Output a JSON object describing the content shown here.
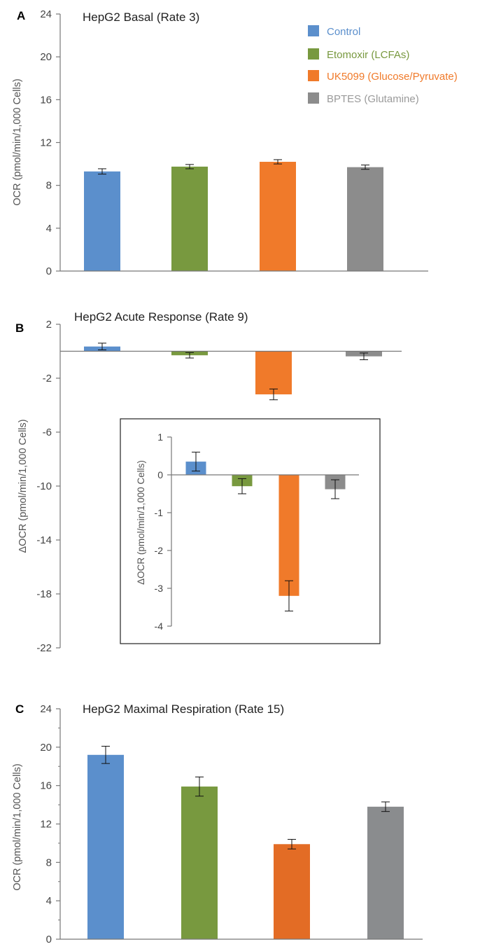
{
  "chart_data": [
    {
      "type": "bar",
      "panel_label": "A",
      "title": "HepG2 Basal (Rate 3)",
      "ylabel": "OCR (pmol/min/1,000 Cells)",
      "ylim": [
        0,
        24
      ],
      "yticks": [
        0,
        4,
        8,
        12,
        16,
        20,
        24
      ],
      "categories": [
        "Control",
        "Etomoxir (LCFAs)",
        "UK5099 (Glucose/Pyruvate)",
        "BPTES (Glutamine)"
      ],
      "values": [
        9.3,
        9.75,
        10.2,
        9.7
      ],
      "errors": [
        0.25,
        0.2,
        0.2,
        0.2
      ],
      "colors": [
        "#5b8fcc",
        "#78993f",
        "#f07a2a",
        "#8c8c8c"
      ],
      "legend": {
        "placement": "top-right",
        "entries": [
          {
            "label": "Control",
            "color": "#5b8fcc"
          },
          {
            "label": "Etomoxir (LCFAs)",
            "color": "#78993f"
          },
          {
            "label": "UK5099 (Glucose/Pyruvate)",
            "color": "#f07a2a"
          },
          {
            "label": "BPTES (Glutamine)",
            "color": "#8c8c8c"
          }
        ]
      }
    },
    {
      "type": "bar",
      "panel_label": "B",
      "title": "HepG2 Acute Response (Rate 9)",
      "ylabel": "ΔOCR (pmol/min/1,000 Cells)",
      "ylim": [
        -22,
        2
      ],
      "yticks": [
        -22,
        -18,
        -14,
        -10,
        -6,
        -2,
        2
      ],
      "categories": [
        "Control",
        "Etomoxir (LCFAs)",
        "UK5099 (Glucose/Pyruvate)",
        "BPTES (Glutamine)"
      ],
      "values": [
        0.35,
        -0.3,
        -3.2,
        -0.38
      ],
      "errors": [
        0.25,
        0.2,
        0.4,
        0.25
      ],
      "colors": [
        "#5b8fcc",
        "#78993f",
        "#f07a2a",
        "#8c8c8c"
      ],
      "inset": {
        "ylabel": "ΔOCR (pmol/min/1,000 Cells)",
        "ylim": [
          -4,
          1
        ],
        "yticks": [
          -4,
          -3,
          -2,
          -1,
          0,
          1
        ],
        "values": [
          0.35,
          -0.3,
          -3.2,
          -0.38
        ],
        "errors": [
          0.25,
          0.2,
          0.4,
          0.25
        ]
      }
    },
    {
      "type": "bar",
      "panel_label": "C",
      "title": "HepG2 Maximal Respiration (Rate 15)",
      "ylabel": "OCR (pmol/min/1,000 Cells)",
      "ylim": [
        0,
        24
      ],
      "yticks": [
        0,
        4,
        8,
        12,
        16,
        20,
        24
      ],
      "categories": [
        "Control",
        "Etomoxir (LCFAs)",
        "UK5099 (Glucose/Pyruvate)",
        "BPTES (Glutamine)"
      ],
      "values": [
        19.2,
        15.9,
        9.9,
        13.8
      ],
      "errors": [
        0.9,
        1.0,
        0.5,
        0.5
      ],
      "colors": [
        "#5b8fcc",
        "#78993f",
        "#e36c25",
        "#8a8c8e"
      ]
    }
  ]
}
